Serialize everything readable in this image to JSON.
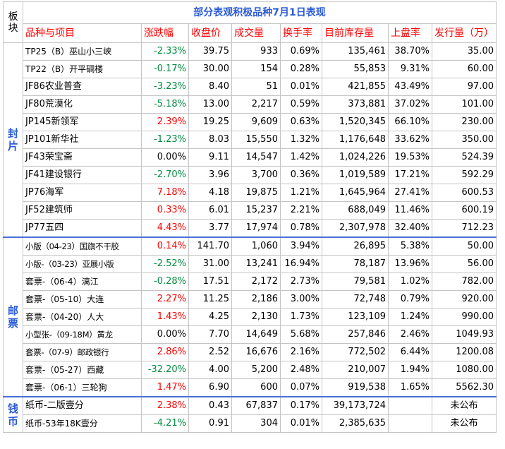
{
  "table": {
    "corner_label": "板块",
    "title": "部分表观积极品种7月1日表现",
    "headers": [
      "品种与项目",
      "涨跌幅",
      "收盘价",
      "成交量",
      "换手率",
      "目前库存量",
      "上盘率",
      "发行量（万）"
    ],
    "sections": [
      {
        "label": "封片",
        "rows": [
          {
            "name": "TP25（B）巫山小三峡",
            "change": "-2.33%",
            "close": "39.75",
            "volume": "933",
            "turnover": "0.69%",
            "stock": "135,461",
            "listing_rate": "38.70%",
            "issue": "35.00"
          },
          {
            "name": "TP22（B）开平碉楼",
            "change": "-0.17%",
            "close": "30.00",
            "volume": "154",
            "turnover": "0.28%",
            "stock": "55,853",
            "listing_rate": "9.31%",
            "issue": "60.00"
          },
          {
            "name": "JF86农业普查",
            "change": "-3.23%",
            "close": "8.40",
            "volume": "51",
            "turnover": "0.01%",
            "stock": "421,855",
            "listing_rate": "43.49%",
            "issue": "97.00"
          },
          {
            "name": "JF80荒漠化",
            "change": "-5.18%",
            "close": "13.00",
            "volume": "2,217",
            "turnover": "0.59%",
            "stock": "373,881",
            "listing_rate": "37.02%",
            "issue": "101.00"
          },
          {
            "name": "JP145新领军",
            "change": "2.39%",
            "close": "19.25",
            "volume": "9,609",
            "turnover": "0.63%",
            "stock": "1,520,345",
            "listing_rate": "66.10%",
            "issue": "230.00"
          },
          {
            "name": "JP101新华社",
            "change": "-1.23%",
            "close": "8.03",
            "volume": "15,550",
            "turnover": "1.32%",
            "stock": "1,176,648",
            "listing_rate": "33.62%",
            "issue": "350.00"
          },
          {
            "name": "JF43荣宝斋",
            "change": "0.00%",
            "close": "9.11",
            "volume": "14,547",
            "turnover": "1.42%",
            "stock": "1,024,226",
            "listing_rate": "19.53%",
            "issue": "524.39"
          },
          {
            "name": "JF41建设银行",
            "change": "-2.70%",
            "close": "3.96",
            "volume": "3,700",
            "turnover": "0.36%",
            "stock": "1,019,589",
            "listing_rate": "17.21%",
            "issue": "592.29"
          },
          {
            "name": "JP76海军",
            "change": "7.18%",
            "close": "4.18",
            "volume": "19,875",
            "turnover": "1.21%",
            "stock": "1,645,964",
            "listing_rate": "27.41%",
            "issue": "600.53"
          },
          {
            "name": "JF52建筑师",
            "change": "0.33%",
            "close": "6.01",
            "volume": "15,237",
            "turnover": "2.21%",
            "stock": "688,049",
            "listing_rate": "11.46%",
            "issue": "600.19"
          },
          {
            "name": "JP77五四",
            "change": "4.43%",
            "close": "3.77",
            "volume": "17,974",
            "turnover": "0.78%",
            "stock": "2,307,978",
            "listing_rate": "32.40%",
            "issue": "712.23"
          }
        ]
      },
      {
        "label": "邮票",
        "rows": [
          {
            "name": "小版（04-23）国旗不干胶",
            "change": "0.14%",
            "close": "141.70",
            "volume": "1,060",
            "turnover": "3.94%",
            "stock": "26,895",
            "listing_rate": "5.38%",
            "issue": "50.00"
          },
          {
            "name": "小版-（03-23）亚展小版",
            "change": "-2.52%",
            "close": "31.00",
            "volume": "13,241",
            "turnover": "16.94%",
            "stock": "78,187",
            "listing_rate": "13.96%",
            "issue": "56.00"
          },
          {
            "name": "套票-（06-4）漓江",
            "change": "-0.28%",
            "close": "17.51",
            "volume": "2,172",
            "turnover": "2.73%",
            "stock": "79,581",
            "listing_rate": "1.02%",
            "issue": "782.00"
          },
          {
            "name": "套票-（05-10）大连",
            "change": "2.27%",
            "close": "11.25",
            "volume": "2,186",
            "turnover": "3.00%",
            "stock": "72,748",
            "listing_rate": "0.79%",
            "issue": "920.00"
          },
          {
            "name": "套票-（04-20）人大",
            "change": "1.43%",
            "close": "4.25",
            "volume": "2,130",
            "turnover": "1.73%",
            "stock": "123,109",
            "listing_rate": "1.24%",
            "issue": "990.00"
          },
          {
            "name": "小型张-（09-18M）黄龙",
            "change": "0.00%",
            "close": "7.70",
            "volume": "14,649",
            "turnover": "5.68%",
            "stock": "257,846",
            "listing_rate": "2.46%",
            "issue": "1049.93"
          },
          {
            "name": "套票-（07-9）邮政银行",
            "change": "2.86%",
            "close": "2.52",
            "volume": "16,676",
            "turnover": "2.16%",
            "stock": "772,502",
            "listing_rate": "6.44%",
            "issue": "1200.08"
          },
          {
            "name": "套票-（05-27）西藏",
            "change": "-32.20%",
            "close": "4.00",
            "volume": "5,200",
            "turnover": "2.48%",
            "stock": "210,007",
            "listing_rate": "1.94%",
            "issue": "1080.00"
          },
          {
            "name": "套票-（06-1）三轮狗",
            "change": "1.47%",
            "close": "6.90",
            "volume": "600",
            "turnover": "0.07%",
            "stock": "919,538",
            "listing_rate": "1.65%",
            "issue": "5562.30"
          }
        ]
      },
      {
        "label": "钱币",
        "rows": [
          {
            "name": "纸币-二版壹分",
            "change": "2.38%",
            "close": "0.43",
            "volume": "67,837",
            "turnover": "0.17%",
            "stock": "39,173,724",
            "listing_rate": "",
            "issue": "未公布"
          },
          {
            "name": "纸币-53年18K壹分",
            "change": "-4.21%",
            "close": "0.91",
            "volume": "304",
            "turnover": "0.01%",
            "stock": "2,385,635",
            "listing_rate": "",
            "issue": "未公布"
          }
        ]
      }
    ]
  }
}
